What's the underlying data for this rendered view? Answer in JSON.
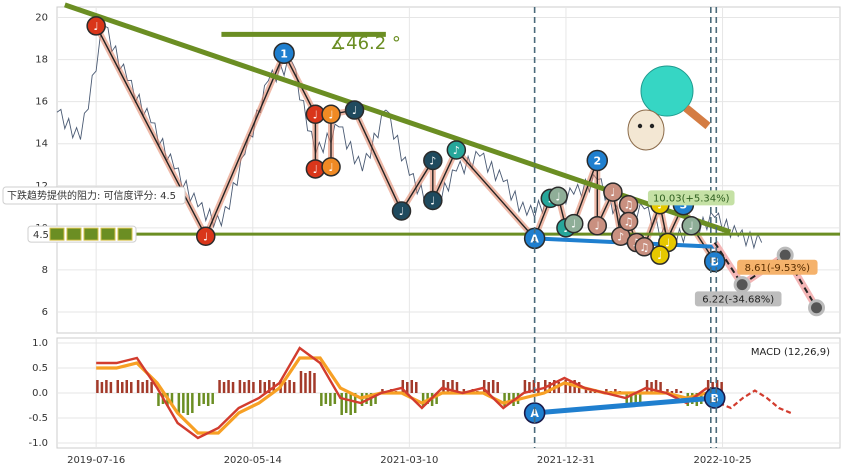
{
  "chart_data": [
    {
      "type": "line",
      "panel": "price",
      "ylim": [
        5,
        20.5
      ],
      "y_ticks": [
        6,
        8,
        10,
        12,
        14,
        16,
        18,
        20
      ],
      "x_ticks": [
        "2019-07-16",
        "2020-05-14",
        "2021-03-10",
        "2021-12-31",
        "2022-10-25"
      ],
      "grid": true,
      "price_series": {
        "x": [
          0,
          0.03,
          0.06,
          0.09,
          0.12,
          0.15,
          0.18,
          0.21,
          0.24,
          0.27,
          0.3,
          0.33,
          0.36,
          0.39,
          0.42,
          0.45,
          0.48,
          0.51,
          0.54,
          0.57,
          0.6,
          0.63,
          0.66,
          0.69,
          0.72,
          0.75,
          0.78,
          0.81,
          0.84,
          0.87,
          0.9
        ],
        "y": [
          15.5,
          14.2,
          19.6,
          17.0,
          15.0,
          12.8,
          11.0,
          10.1,
          13.5,
          17.0,
          17.9,
          13.5,
          14.8,
          12.7,
          15.6,
          12.5,
          10.9,
          12.7,
          13.4,
          12.2,
          10.6,
          11.3,
          11.6,
          12.3,
          10.4,
          10.9,
          9.4,
          9.8,
          10.5,
          9.6,
          9.3
        ]
      },
      "wave_points": [
        {
          "x": 0.05,
          "y": 19.6,
          "color": "#d9361a",
          "text": "♩"
        },
        {
          "x": 0.19,
          "y": 9.6,
          "color": "#d9361a",
          "text": "♩"
        },
        {
          "x": 0.29,
          "y": 18.3,
          "color": "#1f7fcf",
          "text": "1"
        },
        {
          "x": 0.33,
          "y": 15.4,
          "color": "#d9361a",
          "text": "♩"
        },
        {
          "x": 0.33,
          "y": 12.8,
          "color": "#d9361a",
          "text": "♩"
        },
        {
          "x": 0.35,
          "y": 12.9,
          "color": "#f08a24",
          "text": "♩"
        },
        {
          "x": 0.35,
          "y": 15.4,
          "color": "#f08a24",
          "text": "♩"
        },
        {
          "x": 0.38,
          "y": 15.6,
          "color": "#1f4a5e",
          "text": "♩"
        },
        {
          "x": 0.44,
          "y": 10.8,
          "color": "#1f4a5e",
          "text": "♩"
        },
        {
          "x": 0.48,
          "y": 13.2,
          "color": "#1f4a5e",
          "text": "♪"
        },
        {
          "x": 0.48,
          "y": 11.3,
          "color": "#1f4a5e",
          "text": "♩"
        },
        {
          "x": 0.51,
          "y": 13.7,
          "color": "#26a69a",
          "text": "♪"
        },
        {
          "x": 0.61,
          "y": 9.5,
          "color": "#1f7fcf",
          "text": "A"
        },
        {
          "x": 0.63,
          "y": 11.4,
          "color": "#26a69a",
          "text": "♩"
        },
        {
          "x": 0.64,
          "y": 11.5,
          "color": "#8fae98",
          "text": "♩"
        },
        {
          "x": 0.65,
          "y": 10.0,
          "color": "#26a69a",
          "text": "♩"
        },
        {
          "x": 0.66,
          "y": 10.2,
          "color": "#8fae98",
          "text": "♩"
        },
        {
          "x": 0.69,
          "y": 13.2,
          "color": "#1f7fcf",
          "text": "2"
        },
        {
          "x": 0.69,
          "y": 10.1,
          "color": "#c99080",
          "text": "♩"
        },
        {
          "x": 0.71,
          "y": 11.7,
          "color": "#c99080",
          "text": "♩"
        },
        {
          "x": 0.72,
          "y": 9.6,
          "color": "#c99080",
          "text": "♪"
        },
        {
          "x": 0.73,
          "y": 11.1,
          "color": "#c99080",
          "text": "♫"
        },
        {
          "x": 0.73,
          "y": 10.3,
          "color": "#c99080",
          "text": "♫"
        },
        {
          "x": 0.74,
          "y": 9.3,
          "color": "#c99080",
          "text": "♫"
        },
        {
          "x": 0.75,
          "y": 9.1,
          "color": "#c99080",
          "text": "♫"
        },
        {
          "x": 0.77,
          "y": 11.1,
          "color": "#e6c800",
          "text": "♩"
        },
        {
          "x": 0.78,
          "y": 9.3,
          "color": "#e6c800",
          "text": "♩"
        },
        {
          "x": 0.77,
          "y": 8.7,
          "color": "#e6c800",
          "text": "♩"
        },
        {
          "x": 0.8,
          "y": 11.1,
          "color": "#1f7fcf",
          "text": "3"
        },
        {
          "x": 0.81,
          "y": 10.1,
          "color": "#8fae98",
          "text": "♩"
        },
        {
          "x": 0.84,
          "y": 8.4,
          "color": "#1f7fcf",
          "text": "B"
        }
      ],
      "projection_points": [
        {
          "x": 0.84,
          "y": 9.3
        },
        {
          "x": 0.875,
          "y": 7.3
        },
        {
          "x": 0.93,
          "y": 8.7
        },
        {
          "x": 0.97,
          "y": 6.2
        }
      ],
      "price_labels": [
        {
          "text": "10.03(+5.34%)",
          "x": 0.81,
          "y": 11.4,
          "bg": "#c5e1a5",
          "fg": "#2e5e1e"
        },
        {
          "text": "8.61(-9.53%)",
          "x": 0.92,
          "y": 8.1,
          "bg": "#f5b26b",
          "fg": "#5a2e00"
        },
        {
          "text": "6.22(-34.68%)",
          "x": 0.87,
          "y": 6.6,
          "bg": "#bdbdbd",
          "fg": "#222222"
        }
      ],
      "trend_lines": {
        "upper": {
          "from": [
            0.01,
            20.6
          ],
          "to": [
            0.86,
            9.8
          ],
          "color": "#6b8e23"
        },
        "support": {
          "y": 9.7,
          "color": "#6b8e23"
        },
        "short_flat": {
          "from": [
            0.21,
            19.2
          ],
          "to": [
            0.42,
            19.2
          ],
          "color": "#6b8e23"
        },
        "ab_line": {
          "from": [
            0.61,
            9.5
          ],
          "to": [
            0.84,
            9.1
          ],
          "color": "#1f7fcf"
        }
      },
      "annotations": {
        "angle": "∡46.2 °",
        "resistance_text": "下跌趋势提供的阻力: 可信度评分: 4.5",
        "rating_text": "4.5",
        "rating_icons": 5
      },
      "vertical_lines_x": [
        0.61,
        0.835,
        0.842
      ]
    },
    {
      "type": "line",
      "panel": "macd",
      "title": "MACD (12,26,9)",
      "ylim": [
        -1.1,
        1.1
      ],
      "y_ticks": [
        "1.0",
        "0.5",
        "0.0",
        "-0.5",
        "-1.0"
      ],
      "dif": [
        0.6,
        0.6,
        0.7,
        0.1,
        -0.6,
        -0.9,
        -0.7,
        -0.3,
        -0.1,
        0.2,
        0.9,
        0.6,
        -0.1,
        -0.2,
        0.0,
        0.1,
        -0.3,
        0.1,
        0.0,
        0.1,
        -0.3,
        0.0,
        0.1,
        0.3,
        0.1,
        0.0,
        -0.1,
        0.1,
        0.0,
        -0.2,
        0.1
      ],
      "dea": [
        0.5,
        0.5,
        0.6,
        0.2,
        -0.4,
        -0.8,
        -0.8,
        -0.4,
        -0.2,
        0.1,
        0.7,
        0.7,
        0.1,
        -0.1,
        0.0,
        0.0,
        -0.2,
        0.0,
        0.0,
        0.0,
        -0.2,
        -0.1,
        0.0,
        0.2,
        0.1,
        0.0,
        0.0,
        0.0,
        0.0,
        -0.1,
        0.0
      ],
      "projection": [
        0.0,
        -0.2,
        -0.3,
        -0.1,
        0.05,
        -0.1,
        -0.3,
        -0.4
      ],
      "divergence_points": [
        {
          "x": 0.61,
          "y": -0.4,
          "text": "A"
        },
        {
          "x": 0.84,
          "y": -0.1,
          "text": "B"
        }
      ]
    }
  ],
  "colors": {
    "grid": "#e6e6e6",
    "price_line": "#4a5a73",
    "wave_fill": "#e08060",
    "macd_dif": "#d23c2e",
    "macd_dea": "#f7a024",
    "hist_pos": "#a33a2a",
    "hist_neg": "#6b8e23",
    "dashed_vertical": "#4a6a7a"
  }
}
